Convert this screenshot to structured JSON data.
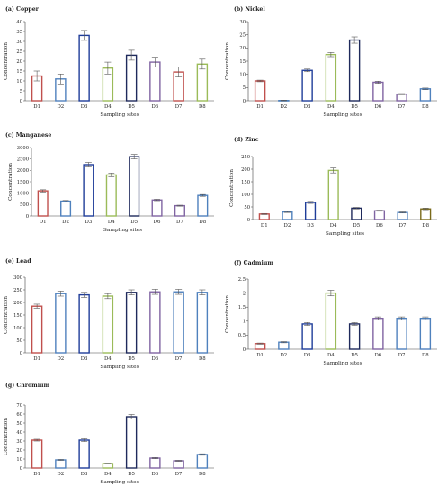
{
  "chart_data": [
    {
      "type": "bar",
      "title": "(a) Copper",
      "xlabel": "Sampling sites",
      "ylabel": "Concentration",
      "categories": [
        "D1",
        "D2",
        "D3",
        "D4",
        "D5",
        "D6",
        "D7",
        "D8"
      ],
      "values": [
        12.5,
        11,
        33,
        16.5,
        23,
        19.5,
        14.5,
        18.5
      ],
      "errors": [
        2.5,
        2.5,
        2.5,
        3,
        2.5,
        2.5,
        2.5,
        2.5
      ],
      "ylim": [
        0,
        40
      ],
      "yticks": [
        0,
        5,
        10,
        15,
        20,
        25,
        30,
        35,
        40
      ],
      "colors": [
        "#c0504d",
        "#4f81bd",
        "#1f3d99",
        "#9bbb59",
        "#1f2a5c",
        "#8064a2",
        "#c0504d",
        "#9bbb59"
      ]
    },
    {
      "type": "bar",
      "title": "(b) Nickel",
      "xlabel": "Sampling sites",
      "ylabel": "Concentration",
      "categories": [
        "D1",
        "D2",
        "D3",
        "D4",
        "D5",
        "D6",
        "D7",
        "D8"
      ],
      "values": [
        7.5,
        0.1,
        11.5,
        17.5,
        23,
        7,
        2.5,
        4.5
      ],
      "errors": [
        0.3,
        0.1,
        0.5,
        0.8,
        1.2,
        0.4,
        0.2,
        0.3
      ],
      "ylim": [
        0,
        30
      ],
      "yticks": [
        0,
        5,
        10,
        15,
        20,
        25,
        30
      ],
      "colors": [
        "#c0504d",
        "#4f81bd",
        "#1f3d99",
        "#9bbb59",
        "#1f2a5c",
        "#8064a2",
        "#8064a2",
        "#4f81bd"
      ]
    },
    {
      "type": "bar",
      "title": "(c) Manganese",
      "xlabel": "Sampling sites",
      "ylabel": "Concentration",
      "categories": [
        "D1",
        "D2",
        "D3",
        "D4",
        "D5",
        "D6",
        "D7",
        "D8"
      ],
      "values": [
        1100,
        650,
        2250,
        1800,
        2600,
        700,
        450,
        900
      ],
      "errors": [
        50,
        30,
        100,
        80,
        100,
        30,
        20,
        40
      ],
      "ylim": [
        0,
        3000
      ],
      "yticks": [
        0,
        500,
        1000,
        1500,
        2000,
        2500,
        3000
      ],
      "colors": [
        "#c0504d",
        "#4f81bd",
        "#1f3d99",
        "#9bbb59",
        "#1f2a5c",
        "#8064a2",
        "#8064a2",
        "#4f81bd"
      ]
    },
    {
      "type": "bar",
      "title": "(d) Zinc",
      "xlabel": "Sampling sites",
      "ylabel": "Concentration",
      "categories": [
        "D1",
        "D2",
        "D3",
        "D4",
        "D5",
        "D6",
        "D7",
        "D8"
      ],
      "values": [
        22,
        30,
        68,
        195,
        45,
        35,
        28,
        42
      ],
      "errors": [
        2,
        2,
        4,
        10,
        3,
        2,
        2,
        3
      ],
      "ylim": [
        0,
        250
      ],
      "yticks": [
        0,
        50,
        100,
        150,
        200,
        250
      ],
      "colors": [
        "#c0504d",
        "#4f81bd",
        "#1f3d99",
        "#9bbb59",
        "#1f2a5c",
        "#8064a2",
        "#4f81bd",
        "#7a6a1a"
      ]
    },
    {
      "type": "bar",
      "title": "(e) Lead",
      "xlabel": "Sampling sites",
      "ylabel": "Concentration",
      "categories": [
        "D1",
        "D2",
        "D3",
        "D4",
        "D5",
        "D6",
        "D7",
        "D8"
      ],
      "values": [
        185,
        235,
        230,
        225,
        240,
        242,
        242,
        240
      ],
      "errors": [
        8,
        10,
        10,
        10,
        10,
        10,
        10,
        10
      ],
      "ylim": [
        0,
        300
      ],
      "yticks": [
        0,
        50,
        100,
        150,
        200,
        250,
        300
      ],
      "colors": [
        "#c0504d",
        "#4f81bd",
        "#1f3d99",
        "#9bbb59",
        "#1f2a5c",
        "#8064a2",
        "#4f81bd",
        "#4f81bd"
      ]
    },
    {
      "type": "bar",
      "title": "(f) Cadmium",
      "xlabel": "Sampling sites",
      "ylabel": "Concentration",
      "categories": [
        "D1",
        "D2",
        "D3",
        "D4",
        "D5",
        "D6",
        "D7",
        "D8"
      ],
      "values": [
        0.2,
        0.25,
        0.9,
        2,
        0.9,
        1.1,
        1.1,
        1.1
      ],
      "errors": [
        0.02,
        0.02,
        0.05,
        0.1,
        0.05,
        0.05,
        0.05,
        0.05
      ],
      "ylim": [
        0,
        2.5
      ],
      "yticks": [
        0,
        0.5,
        1,
        1.5,
        2,
        2.5
      ],
      "colors": [
        "#c0504d",
        "#4f81bd",
        "#1f3d99",
        "#9bbb59",
        "#1f2a5c",
        "#8064a2",
        "#4f81bd",
        "#4f81bd"
      ]
    },
    {
      "type": "bar",
      "title": "(g) Chromium",
      "xlabel": "Sampling sites",
      "ylabel": "Concentration",
      "categories": [
        "D1",
        "D2",
        "D3",
        "D4",
        "D5",
        "D6",
        "D7",
        "D8"
      ],
      "values": [
        31,
        9,
        31,
        5,
        57,
        11,
        8,
        15
      ],
      "errors": [
        1,
        0.5,
        1.5,
        0.3,
        2.5,
        0.6,
        0.5,
        0.8
      ],
      "ylim": [
        0,
        70
      ],
      "yticks": [
        0,
        10,
        20,
        30,
        40,
        50,
        60,
        70
      ],
      "colors": [
        "#c0504d",
        "#4f81bd",
        "#1f3d99",
        "#9bbb59",
        "#1f2a5c",
        "#8064a2",
        "#8064a2",
        "#4f81bd"
      ]
    }
  ]
}
